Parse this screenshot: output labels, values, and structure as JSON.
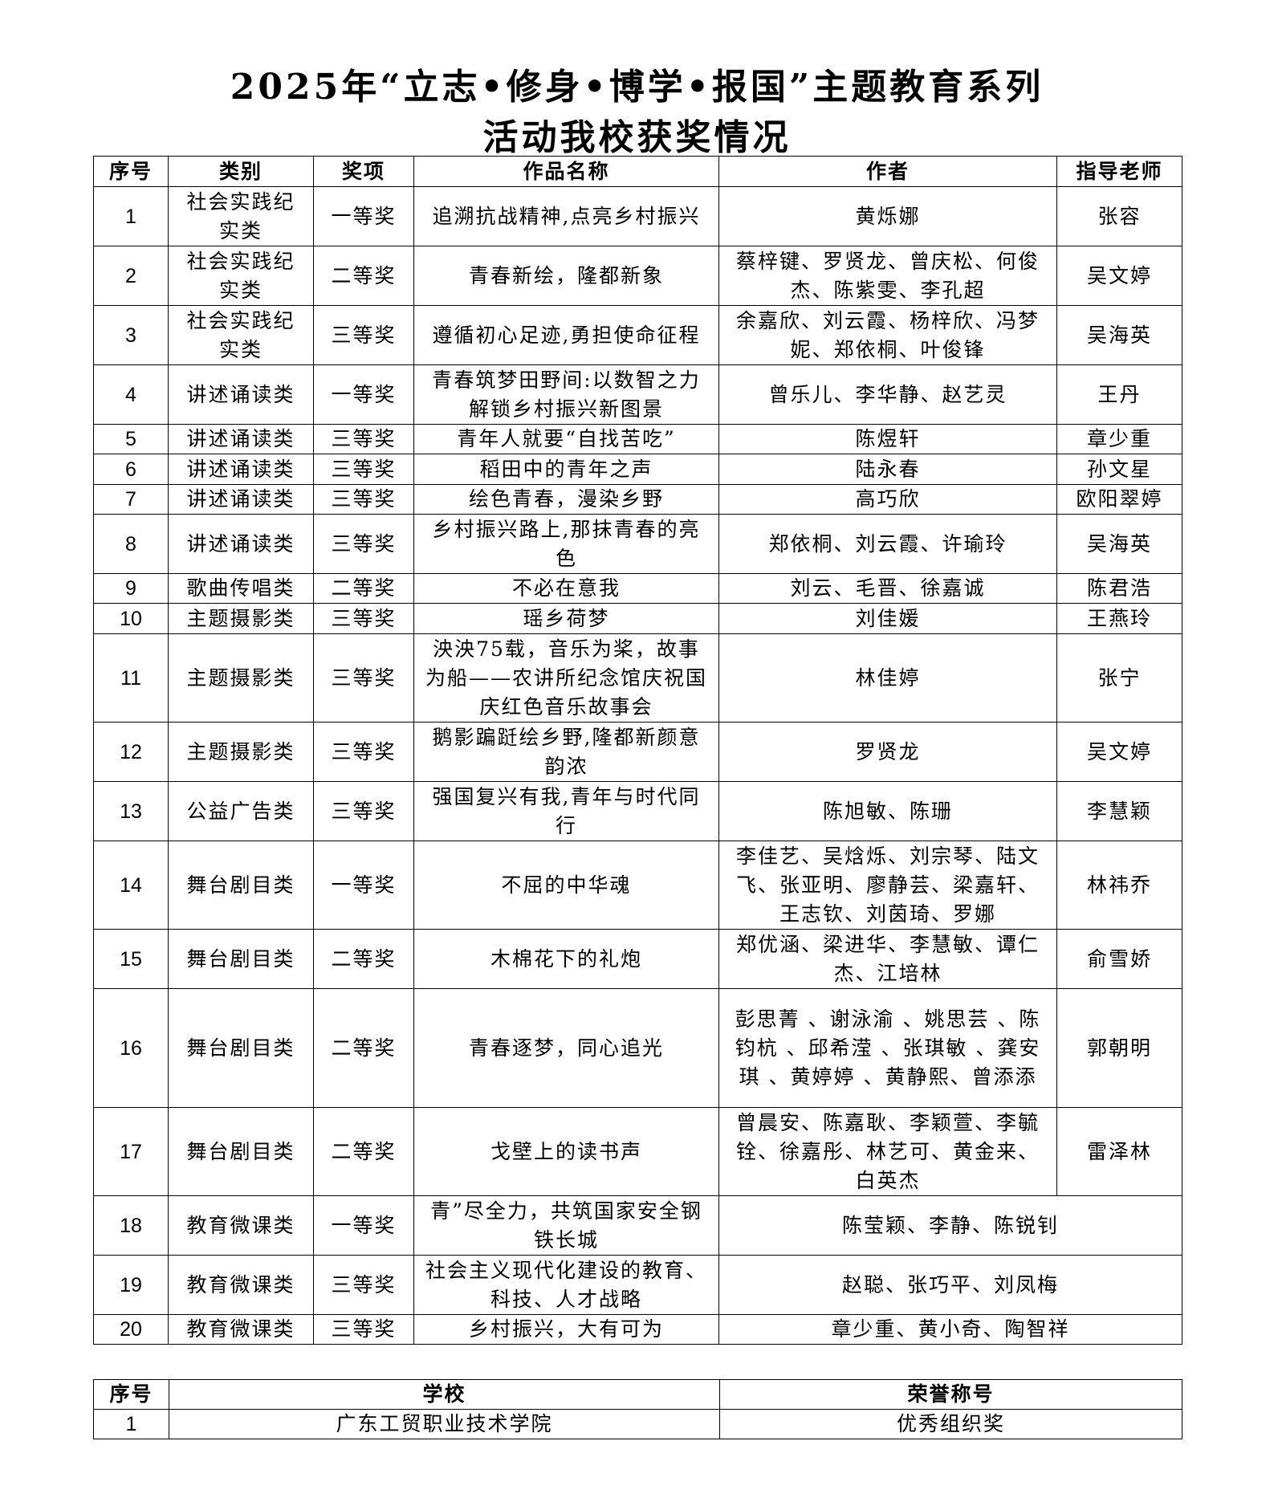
{
  "title_line1": "2025年“立志•修身•博学•报国”主题教育系列",
  "title_line2": "活动我校获奖情况",
  "awards_table": {
    "headers": [
      "序号",
      "类别",
      "奖项",
      "作品名称",
      "作者",
      "指导老师"
    ],
    "rows": [
      {
        "no": "1",
        "category": "社会实践纪实类",
        "award": "一等奖",
        "work": "追溯抗战精神,点亮乡村振兴",
        "authors": "黄烁娜",
        "teacher": "张容"
      },
      {
        "no": "2",
        "category": "社会实践纪实类",
        "award": "二等奖",
        "work": "青春新绘，隆都新象",
        "authors": "蔡梓键、罗贤龙、曾庆松、何俊杰、陈紫雯、李孔超",
        "teacher": "吴文婷"
      },
      {
        "no": "3",
        "category": "社会实践纪实类",
        "award": "三等奖",
        "work": "遵循初心足迹,勇担使命征程",
        "authors": "余嘉欣、刘云霞、杨梓欣、冯梦妮、郑依桐、叶俊锋",
        "teacher": "吴海英"
      },
      {
        "no": "4",
        "category": "讲述诵读类",
        "award": "一等奖",
        "work": "青春筑梦田野间:以数智之力解锁乡村振兴新图景",
        "authors": "曾乐儿、李华静、赵艺灵",
        "teacher": "王丹"
      },
      {
        "no": "5",
        "category": "讲述诵读类",
        "award": "三等奖",
        "work": "青年人就要“自找苦吃”",
        "authors": "陈煜轩",
        "teacher": "章少重"
      },
      {
        "no": "6",
        "category": "讲述诵读类",
        "award": "三等奖",
        "work": "稻田中的青年之声",
        "authors": "陆永春",
        "teacher": "孙文星"
      },
      {
        "no": "7",
        "category": "讲述诵读类",
        "award": "三等奖",
        "work": "绘色青春，漫染乡野",
        "authors": "高巧欣",
        "teacher": "欧阳翠婷"
      },
      {
        "no": "8",
        "category": "讲述诵读类",
        "award": "三等奖",
        "work": "乡村振兴路上,那抹青春的亮色",
        "authors": "郑依桐、刘云霞、许瑜玲",
        "teacher": "吴海英"
      },
      {
        "no": "9",
        "category": "歌曲传唱类",
        "award": "二等奖",
        "work": "不必在意我",
        "authors": "刘云、毛晋、徐嘉诚",
        "teacher": "陈君浩"
      },
      {
        "no": "10",
        "category": "主题摄影类",
        "award": "三等奖",
        "work": "瑶乡荷梦",
        "authors": "刘佳媛",
        "teacher": "王燕玲"
      },
      {
        "no": "11",
        "category": "主题摄影类",
        "award": "三等奖",
        "work": "泱泱75载，音乐为桨，故事为船——农讲所纪念馆庆祝国庆红色音乐故事会",
        "authors": "林佳婷",
        "teacher": "张宁"
      },
      {
        "no": "12",
        "category": "主题摄影类",
        "award": "三等奖",
        "work": "鹅影蹁跹绘乡野,隆都新颜意韵浓",
        "authors": "罗贤龙",
        "teacher": "吴文婷"
      },
      {
        "no": "13",
        "category": "公益广告类",
        "award": "三等奖",
        "work": "强国复兴有我,青年与时代同行",
        "authors": "陈旭敏、陈珊",
        "teacher": "李慧颖"
      },
      {
        "no": "14",
        "category": "舞台剧目类",
        "award": "一等奖",
        "work": "不屈的中华魂",
        "authors": "李佳艺、吴焓烁、刘宗琴、陆文飞、张亚明、廖静芸、梁嘉轩、王志钦、刘茵琦、罗娜",
        "teacher": "林祎乔"
      },
      {
        "no": "15",
        "category": "舞台剧目类",
        "award": "二等奖",
        "work": "木棉花下的礼炮",
        "authors": "郑优涵、梁进华、李慧敏、谭仁杰、江培林",
        "teacher": "俞雪娇"
      },
      {
        "no": "16",
        "category": "舞台剧目类",
        "award": "二等奖",
        "work": "青春逐梦，同心追光",
        "authors": "彭思菁 、谢泳渝 、姚思芸 、陈钧杭 、邱希滢 、张琪敏 、龚安琪 、黄婷婷 、黄静熙、曾添添",
        "teacher": "郭朝明"
      },
      {
        "no": "17",
        "category": "舞台剧目类",
        "award": "二等奖",
        "work": "戈壁上的读书声",
        "authors": "曾晨安、陈嘉耿、李颖萱、李毓铨、徐嘉彤、林艺可、黄金来、白英杰",
        "teacher": "雷泽林"
      },
      {
        "no": "18",
        "category": "教育微课类",
        "award": "一等奖",
        "work": "青”尽全力，共筑国家安全钢铁长城",
        "authors": "陈莹颖、李静、陈锐钊"
      },
      {
        "no": "19",
        "category": "教育微课类",
        "award": "三等奖",
        "work": "社会主义现代化建设的教育、科技、人才战略",
        "authors": "赵聪、张巧平、刘凤梅"
      },
      {
        "no": "20",
        "category": "教育微课类",
        "award": "三等奖",
        "work": "乡村振兴，大有可为",
        "authors": "章少重、黄小奇、陶智祥"
      }
    ]
  },
  "honor_table": {
    "headers": [
      "序号",
      "学校",
      "荣誉称号"
    ],
    "rows": [
      {
        "no": "1",
        "school": "广东工贸职业技术学院",
        "honor": "优秀组织奖"
      }
    ]
  }
}
